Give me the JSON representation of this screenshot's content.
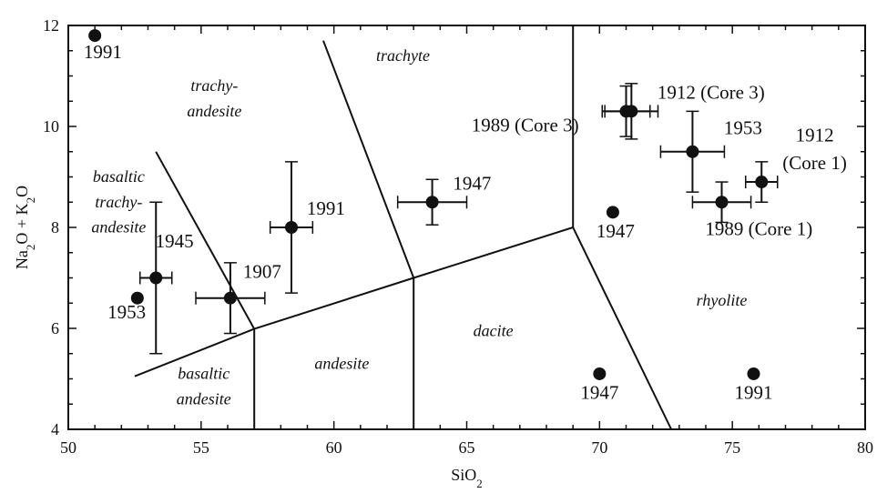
{
  "chart_data": {
    "type": "scatter",
    "xlabel": "SiO2",
    "ylabel": "Na2O + K2O",
    "xlim": [
      50,
      80
    ],
    "ylim": [
      4,
      12
    ],
    "x_ticks": [
      50,
      55,
      60,
      65,
      70,
      75,
      80
    ],
    "y_ticks": [
      4,
      6,
      8,
      10,
      12
    ],
    "grid": false,
    "boundaries": [
      {
        "x": [
          52.5,
          57,
          63,
          69
        ],
        "y": [
          5.05,
          5.99,
          7.0,
          8.0
        ]
      },
      {
        "x": [
          57,
          57
        ],
        "y": [
          4,
          5.99
        ]
      },
      {
        "x": [
          63,
          63
        ],
        "y": [
          4,
          7.0
        ]
      },
      {
        "x": [
          69,
          72.7
        ],
        "y": [
          8.0,
          4
        ]
      },
      {
        "x": [
          69,
          69
        ],
        "y": [
          8.0,
          12
        ]
      },
      {
        "x": [
          63,
          59.6
        ],
        "y": [
          7.0,
          11.7
        ]
      },
      {
        "x": [
          57,
          53.3
        ],
        "y": [
          5.99,
          9.5
        ]
      }
    ],
    "field_labels": [
      {
        "text": "trachy-",
        "x": 55.5,
        "y": 10.7
      },
      {
        "text": "andesite",
        "x": 55.5,
        "y": 10.2
      },
      {
        "text": "trachyte",
        "x": 62.6,
        "y": 11.3
      },
      {
        "text": "basaltic",
        "x": 51.9,
        "y": 8.9
      },
      {
        "text": "trachy-",
        "x": 51.9,
        "y": 8.4
      },
      {
        "text": "andesite",
        "x": 51.9,
        "y": 7.9
      },
      {
        "text": "rhyolite",
        "x": 74.6,
        "y": 6.45
      },
      {
        "text": "dacite",
        "x": 66.0,
        "y": 5.85
      },
      {
        "text": "andesite",
        "x": 60.3,
        "y": 5.2
      },
      {
        "text": "basaltic",
        "x": 55.1,
        "y": 5.0
      },
      {
        "text": "andesite",
        "x": 55.1,
        "y": 4.5
      }
    ],
    "points": [
      {
        "label": "1991",
        "x": 51.0,
        "y": 11.8
      },
      {
        "label": "1953",
        "x": 52.6,
        "y": 6.6
      },
      {
        "label": "1945",
        "x": 53.3,
        "y": 7.0,
        "xerr": 0.6,
        "yerr": 1.5
      },
      {
        "label": "1907",
        "x": 56.1,
        "y": 6.6,
        "xerr": 1.3,
        "yerr": 0.7
      },
      {
        "label": "1991",
        "x": 58.4,
        "y": 8.0,
        "xerr": 0.8,
        "yerr": 1.3
      },
      {
        "label": "1947",
        "x": 63.7,
        "y": 8.5,
        "xerr": 1.3,
        "yerr": 0.45
      },
      {
        "label": "1947",
        "x": 70.5,
        "y": 8.3
      },
      {
        "label": "1947",
        "x": 70.0,
        "y": 5.1
      },
      {
        "label": "1991",
        "x": 75.8,
        "y": 5.1
      },
      {
        "label": "1912 (Core 3)",
        "x": 71.2,
        "y": 10.3,
        "xerr": 1.0,
        "yerr": 0.55
      },
      {
        "label": "1989 (Core 3)",
        "x": 71.0,
        "y": 10.3,
        "xerr": 0.9,
        "yerr": 0.5
      },
      {
        "label": "1953",
        "x": 73.5,
        "y": 9.5,
        "xerr": 1.2,
        "yerr": 0.8
      },
      {
        "label": "1989 (Core 1)",
        "x": 74.6,
        "y": 8.5,
        "xerr": 1.1,
        "yerr": 0.4
      },
      {
        "label": "1912",
        "label2": "(Core 1)",
        "x": 76.1,
        "y": 8.9,
        "xerr": 0.6,
        "yerr": 0.4
      }
    ],
    "point_labels": [
      {
        "text": "1991",
        "x": 51.3,
        "y": 11.35
      },
      {
        "text": "1953",
        "x": 52.2,
        "y": 6.2
      },
      {
        "text": "1945",
        "x": 54.0,
        "y": 7.6
      },
      {
        "text": "1907",
        "x": 57.3,
        "y": 7.0
      },
      {
        "text": "1991",
        "x": 59.7,
        "y": 8.25
      },
      {
        "text": "1947",
        "x": 65.2,
        "y": 8.75
      },
      {
        "text": "1947",
        "x": 70.6,
        "y": 7.8
      },
      {
        "text": "1947",
        "x": 70.0,
        "y": 4.6
      },
      {
        "text": "1991",
        "x": 75.8,
        "y": 4.6
      },
      {
        "text": "1912 (Core 3)",
        "x": 74.2,
        "y": 10.55
      },
      {
        "text": "1989 (Core 3)",
        "x": 67.2,
        "y": 9.9
      },
      {
        "text": "1953",
        "x": 75.4,
        "y": 9.85
      },
      {
        "text": "1989 (Core 1)",
        "x": 76.0,
        "y": 7.85
      },
      {
        "text": "1912",
        "x": 78.1,
        "y": 9.7
      },
      {
        "text": "(Core 1)",
        "x": 78.1,
        "y": 9.15
      }
    ]
  }
}
